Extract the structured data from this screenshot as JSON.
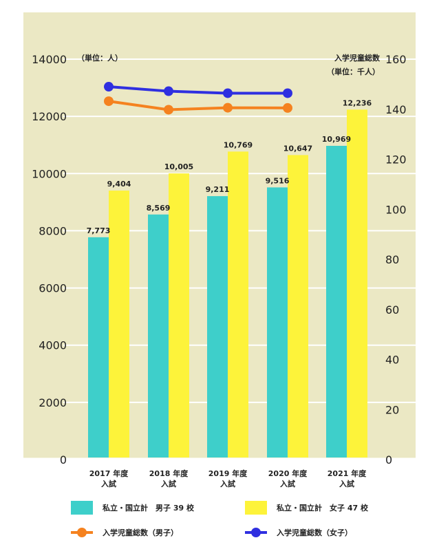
{
  "chart_data": {
    "type": "bar",
    "categories": [
      "2017 年度\n入試",
      "2018 年度\n入試",
      "2019 年度\n入試",
      "2020 年度\n入試",
      "2021 年度\n入試"
    ],
    "left_axis": {
      "unit_label": "（単位：人）",
      "ylim": [
        0,
        14000
      ],
      "ticks": [
        "0",
        "2000",
        "4000",
        "6000",
        "8000",
        "10000",
        "12000",
        "14000"
      ]
    },
    "right_axis": {
      "title": "入学児童総数",
      "unit_label": "（単位：千人）",
      "ylim": [
        0,
        160
      ],
      "ticks": [
        "0",
        "20",
        "40",
        "60",
        "80",
        "100",
        "120",
        "140",
        "160"
      ]
    },
    "series": [
      {
        "name": "私立・国立計　男子 39 校",
        "kind": "bar",
        "axis": "left",
        "color": "#3ecfca",
        "values": [
          7773,
          8569,
          9211,
          9516,
          10969
        ],
        "labels": [
          "7,773",
          "8,569",
          "9,211",
          "9,516",
          "10,969"
        ]
      },
      {
        "name": "私立・国立計　女子 47 校",
        "kind": "bar",
        "axis": "left",
        "color": "#fdf33a",
        "values": [
          9404,
          10005,
          10769,
          10647,
          12236
        ],
        "labels": [
          "9,404",
          "10,005",
          "10,769",
          "10,647",
          "12,236"
        ]
      },
      {
        "name": "入学児童総数（男子）",
        "kind": "line",
        "axis": "right",
        "color": "#f5821f",
        "values": [
          143.2,
          139.8,
          140.6,
          140.5,
          null
        ]
      },
      {
        "name": "入学児童総数（女子）",
        "kind": "line",
        "axis": "right",
        "color": "#2f2fe0",
        "values": [
          149.0,
          147.2,
          146.4,
          146.4,
          null
        ]
      }
    ],
    "background_color": "#ebe8c4",
    "gridlines": true,
    "legend_position": "bottom"
  }
}
